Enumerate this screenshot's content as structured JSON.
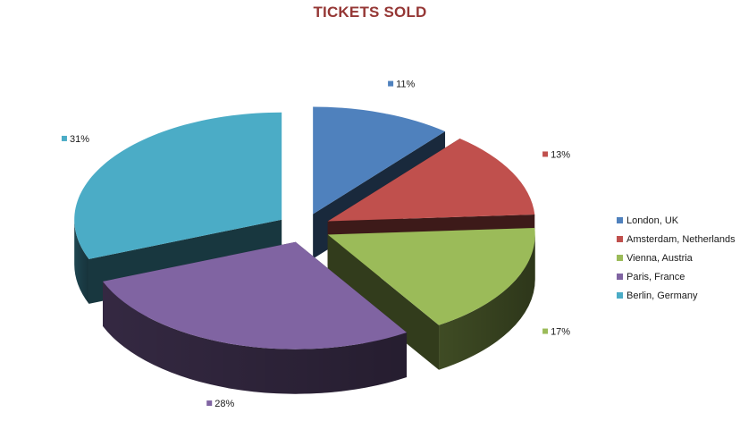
{
  "chart_data": {
    "type": "pie",
    "title": "TICKETS SOLD",
    "categories": [
      "London, UK",
      "Amsterdam, Netherlands",
      "Vienna, Austria",
      "Paris, France",
      "Berlin, Germany"
    ],
    "values": [
      11,
      13,
      17,
      28,
      31
    ],
    "data_labels": [
      "11%",
      "13%",
      "17%",
      "28%",
      "31%"
    ],
    "colors": [
      "#4F81BD",
      "#C0504D",
      "#9BBB59",
      "#8064A2",
      "#4BACC6"
    ],
    "exploded": true,
    "three_d": true,
    "legend_position": "right"
  }
}
